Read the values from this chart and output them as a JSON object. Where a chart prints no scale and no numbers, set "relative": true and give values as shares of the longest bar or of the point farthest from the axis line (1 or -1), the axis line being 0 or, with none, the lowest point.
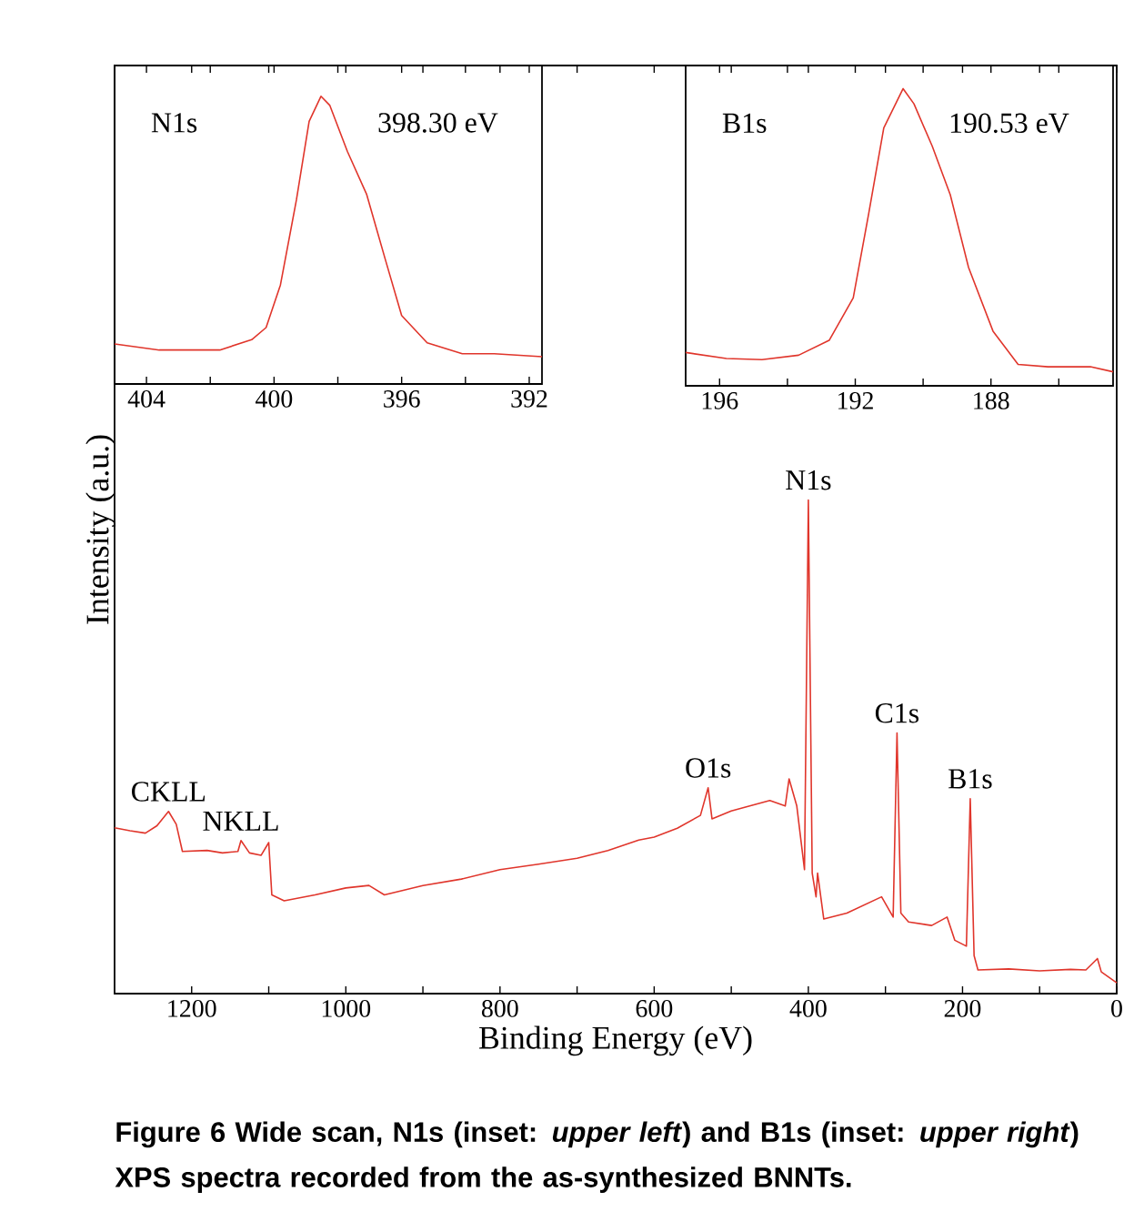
{
  "chart_data": [
    {
      "type": "line",
      "relative": true,
      "xlabel": "Binding Energy (eV)",
      "ylabel": "Intensity (a.u.)",
      "xlim": [
        1300,
        0
      ],
      "xticks": [
        1200,
        {
          "value": 1100,
          "label": null
        },
        1000,
        {
          "value": 900,
          "label": null
        },
        800,
        {
          "value": 700,
          "label": null
        },
        600,
        {
          "value": 500,
          "label": null
        },
        400,
        {
          "value": 300,
          "label": null
        },
        200,
        {
          "value": 100,
          "label": null
        },
        0
      ],
      "series": [
        {
          "color": "#e0352b",
          "x": [
            1300,
            1280,
            1260,
            1245,
            1230,
            1220,
            1212,
            1180,
            1160,
            1140,
            1136,
            1125,
            1110,
            1100,
            1096,
            1080,
            1040,
            1000,
            970,
            950,
            900,
            850,
            800,
            750,
            700,
            660,
            620,
            600,
            570,
            540,
            530,
            525,
            500,
            450,
            430,
            425,
            415,
            405,
            400,
            395,
            390,
            388,
            380,
            350,
            305,
            290,
            285,
            280,
            270,
            240,
            220,
            210,
            195,
            190,
            185,
            180,
            140,
            100,
            60,
            40,
            25,
            20,
            0
          ],
          "values": [
            0.336,
            0.33,
            0.325,
            0.34,
            0.369,
            0.343,
            0.288,
            0.29,
            0.285,
            0.288,
            0.31,
            0.285,
            0.28,
            0.306,
            0.2,
            0.188,
            0.2,
            0.214,
            0.219,
            0.2,
            0.219,
            0.232,
            0.251,
            0.262,
            0.274,
            0.29,
            0.311,
            0.317,
            0.335,
            0.361,
            0.417,
            0.354,
            0.37,
            0.391,
            0.38,
            0.435,
            0.38,
            0.251,
            1.0,
            0.244,
            0.196,
            0.244,
            0.151,
            0.163,
            0.196,
            0.155,
            0.528,
            0.163,
            0.145,
            0.138,
            0.155,
            0.108,
            0.096,
            0.395,
            0.077,
            0.048,
            0.05,
            0.046,
            0.049,
            0.048,
            0.071,
            0.044,
            0.022
          ]
        }
      ],
      "annotations": [
        {
          "text": "CKLL",
          "x": 1230,
          "y": 0.369
        },
        {
          "text": "NKLL",
          "x": 1136,
          "y": 0.31
        },
        {
          "text": "O1s",
          "x": 530,
          "y": 0.417
        },
        {
          "text": "N1s",
          "x": 400,
          "y": 1.0
        },
        {
          "text": "C1s",
          "x": 285,
          "y": 0.528
        },
        {
          "text": "B1s",
          "x": 190,
          "y": 0.395
        },
        "**Figure 6** Wide scan, N1s (inset: *upper left*) and B1s (inset: *upper right*) XPS spectra recorded from the as-synthesized BNNTs."
      ]
    },
    {
      "type": "line",
      "relative": true,
      "xlim": [
        405,
        391.6
      ],
      "xticks": [
        404,
        {
          "value": 402,
          "label": null
        },
        400,
        {
          "value": 398,
          "label": null
        },
        396,
        {
          "value": 394,
          "label": null
        },
        392
      ],
      "series": [
        {
          "color": "#e0352b",
          "x": [
            405.0,
            403.6,
            401.7,
            400.7,
            400.25,
            399.8,
            399.3,
            398.9,
            398.53,
            398.25,
            397.7,
            397.1,
            396.5,
            396.0,
            395.2,
            394.1,
            393.1,
            391.6
          ],
          "values": [
            0.139,
            0.118,
            0.118,
            0.154,
            0.196,
            0.344,
            0.639,
            0.913,
            1.0,
            0.968,
            0.808,
            0.66,
            0.428,
            0.238,
            0.143,
            0.105,
            0.105,
            0.095
          ]
        }
      ],
      "annotations": [
        "N1s",
        "398.30 eV"
      ]
    },
    {
      "type": "line",
      "relative": true,
      "xlim": [
        197,
        184.4
      ],
      "xticks": [
        196,
        {
          "value": 194,
          "label": null
        },
        192,
        {
          "value": 190,
          "label": null
        },
        188,
        {
          "value": 186,
          "label": null
        }
      ],
      "series": [
        {
          "color": "#e0352b",
          "x": [
            197.0,
            195.8,
            194.75,
            193.67,
            192.77,
            192.06,
            191.6,
            191.16,
            190.59,
            190.27,
            189.73,
            189.2,
            188.66,
            187.94,
            187.2,
            186.32,
            185.07,
            184.4
          ],
          "values": [
            0.112,
            0.092,
            0.088,
            0.103,
            0.153,
            0.296,
            0.582,
            0.868,
            1.0,
            0.949,
            0.806,
            0.643,
            0.398,
            0.184,
            0.072,
            0.064,
            0.064,
            0.047
          ]
        }
      ],
      "annotations": [
        "B1s",
        "190.53 eV"
      ]
    }
  ]
}
